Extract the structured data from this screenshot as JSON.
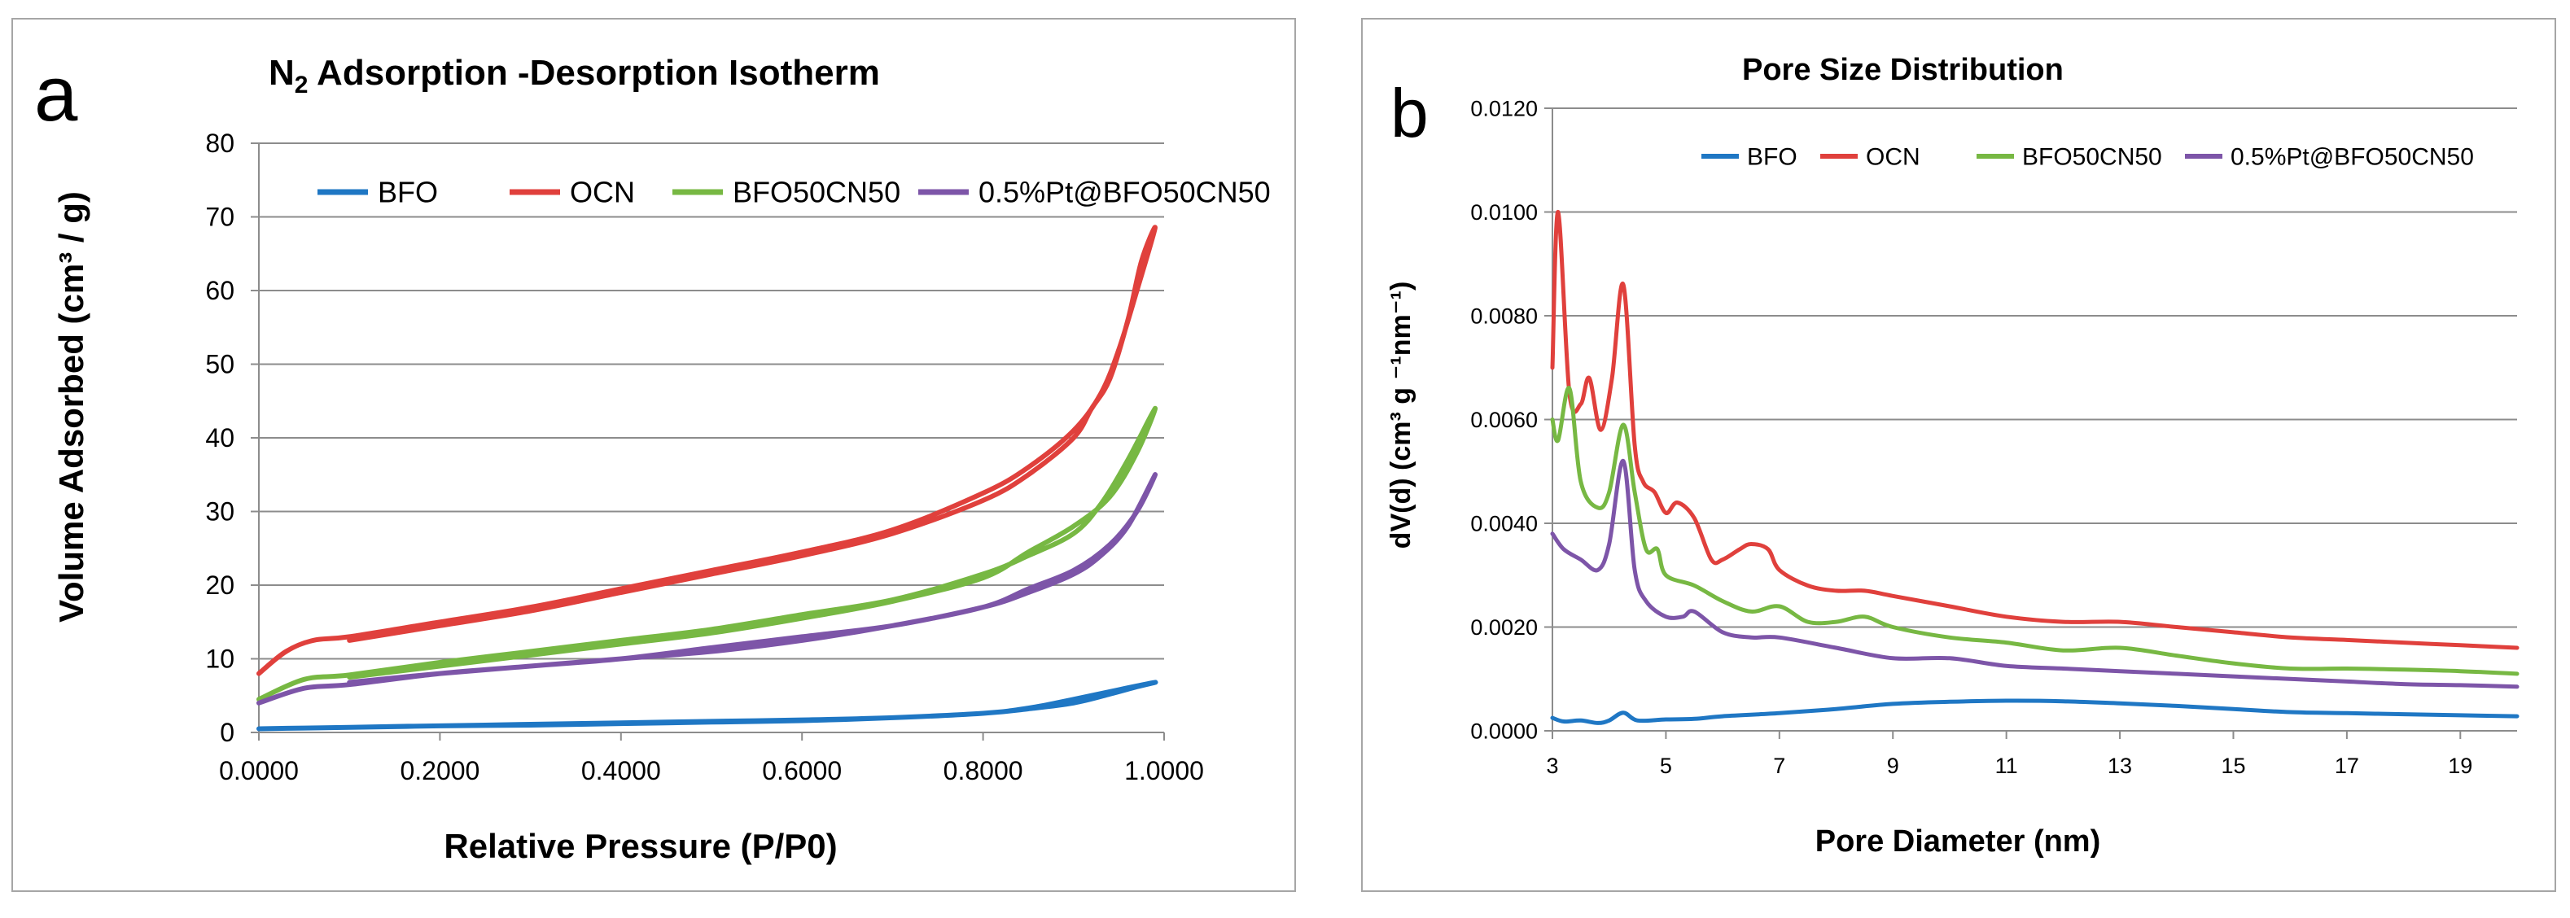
{
  "chart_data": [
    {
      "panel_letter": "a",
      "type": "line",
      "title_main": "N",
      "title_sub": "2",
      "title_rest": " Adsorption -Desorption Isotherm",
      "xlabel": "Relative Pressure (P/P0)",
      "ylabel": "Volume Adsorbed (cm³ / g)",
      "xlim": [
        0,
        1
      ],
      "ylim": [
        0,
        80
      ],
      "x_ticks": [
        0,
        0.2,
        0.4,
        0.6,
        0.8,
        1.0
      ],
      "x_tick_labels": [
        "0.0000",
        "0.2000",
        "0.4000",
        "0.6000",
        "0.8000",
        "1.0000"
      ],
      "y_ticks": [
        0,
        10,
        20,
        30,
        40,
        50,
        60,
        70,
        80
      ],
      "y_tick_labels": [
        "0",
        "10",
        "20",
        "30",
        "40",
        "50",
        "60",
        "70",
        "80"
      ],
      "grid": true,
      "legend_position": "top",
      "series": [
        {
          "name": "BFO",
          "color": "#1f77c4",
          "x": [
            0.0,
            0.05,
            0.1,
            0.2,
            0.3,
            0.4,
            0.5,
            0.6,
            0.7,
            0.8,
            0.85,
            0.9,
            0.95,
            0.99,
            0.97,
            0.94,
            0.9,
            0.85,
            0.8,
            0.7,
            0.6,
            0.5,
            0.4,
            0.3,
            0.2,
            0.1
          ],
          "y": [
            0.5,
            0.6,
            0.7,
            0.9,
            1.0,
            1.2,
            1.4,
            1.6,
            2.0,
            2.6,
            3.3,
            4.5,
            5.8,
            6.8,
            6.2,
            5.2,
            4.0,
            3.2,
            2.6,
            2.0,
            1.7,
            1.5,
            1.3,
            1.1,
            0.9,
            0.7
          ]
        },
        {
          "name": "OCN",
          "color": "#e0403c",
          "x": [
            0.0,
            0.03,
            0.06,
            0.1,
            0.2,
            0.3,
            0.4,
            0.5,
            0.6,
            0.7,
            0.8,
            0.85,
            0.9,
            0.93,
            0.95,
            0.97,
            0.99,
            0.975,
            0.96,
            0.94,
            0.92,
            0.9,
            0.85,
            0.8,
            0.7,
            0.6,
            0.5,
            0.4,
            0.3,
            0.2,
            0.1
          ],
          "y": [
            8.0,
            11.0,
            12.5,
            13.0,
            15.0,
            17.0,
            19.5,
            22.0,
            24.5,
            27.5,
            32.5,
            36.0,
            41.0,
            46.0,
            52.0,
            60.0,
            68.5,
            64.0,
            56.0,
            48.0,
            44.0,
            40.0,
            35.0,
            31.5,
            27.0,
            24.0,
            21.5,
            19.0,
            16.5,
            14.5,
            12.5
          ]
        },
        {
          "name": "BFO50CN50",
          "color": "#77b843",
          "x": [
            0.0,
            0.05,
            0.1,
            0.2,
            0.3,
            0.4,
            0.5,
            0.6,
            0.7,
            0.8,
            0.85,
            0.9,
            0.93,
            0.96,
            0.99,
            0.97,
            0.94,
            0.9,
            0.85,
            0.8,
            0.7,
            0.6,
            0.5,
            0.4,
            0.3,
            0.2,
            0.1
          ],
          "y": [
            4.5,
            7.2,
            7.8,
            9.5,
            11.0,
            12.5,
            14.0,
            16.0,
            18.0,
            21.5,
            24.0,
            27.0,
            31.0,
            37.0,
            44.0,
            38.0,
            32.0,
            28.0,
            24.5,
            21.0,
            17.8,
            15.5,
            13.5,
            12.0,
            10.5,
            9.0,
            7.5
          ]
        },
        {
          "name": "0.5%Pt@BFO50CN50",
          "color": "#7d55a8",
          "x": [
            0.0,
            0.05,
            0.1,
            0.2,
            0.3,
            0.4,
            0.5,
            0.6,
            0.7,
            0.8,
            0.85,
            0.9,
            0.93,
            0.96,
            0.99,
            0.97,
            0.94,
            0.9,
            0.85,
            0.8,
            0.7,
            0.6,
            0.5,
            0.4,
            0.3,
            0.2,
            0.1
          ],
          "y": [
            4.0,
            6.0,
            6.5,
            8.0,
            9.0,
            10.0,
            11.5,
            13.0,
            14.5,
            17.0,
            19.0,
            21.5,
            24.0,
            28.0,
            35.0,
            30.0,
            25.5,
            22.0,
            19.5,
            17.0,
            14.5,
            12.5,
            11.0,
            10.0,
            9.0,
            8.0,
            6.8
          ]
        }
      ]
    },
    {
      "panel_letter": "b",
      "type": "line",
      "title": "Pore Size Distribution",
      "xlabel": "Pore Diameter (nm)",
      "ylabel": "dV(d) (cm³ g ⁻¹nm⁻¹)",
      "xlim": [
        3,
        20
      ],
      "ylim": [
        0,
        0.012
      ],
      "x_ticks": [
        3,
        5,
        7,
        9,
        11,
        13,
        15,
        17,
        19
      ],
      "x_tick_labels": [
        "3",
        "5",
        "7",
        "9",
        "11",
        "13",
        "15",
        "17",
        "19"
      ],
      "y_ticks": [
        0,
        0.002,
        0.004,
        0.006,
        0.008,
        0.01,
        0.012
      ],
      "y_tick_labels": [
        "0.0000",
        "0.0020",
        "0.0040",
        "0.0060",
        "0.0080",
        "0.0100",
        "0.0120"
      ],
      "grid": true,
      "legend_position": "top",
      "series": [
        {
          "name": "BFO",
          "color": "#1f77c4",
          "x": [
            3.0,
            3.2,
            3.5,
            3.8,
            4.0,
            4.25,
            4.5,
            5.0,
            5.5,
            6.0,
            7.0,
            8.0,
            9.0,
            10.0,
            11.0,
            12.0,
            13.0,
            14.0,
            15.0,
            16.0,
            17.0,
            18.0,
            19.0,
            20.0
          ],
          "y": [
            0.00025,
            0.00018,
            0.0002,
            0.00015,
            0.0002,
            0.00035,
            0.0002,
            0.00022,
            0.00023,
            0.00028,
            0.00034,
            0.00042,
            0.00052,
            0.00056,
            0.00058,
            0.00057,
            0.00053,
            0.00048,
            0.00042,
            0.00036,
            0.00034,
            0.00032,
            0.0003,
            0.00028
          ]
        },
        {
          "name": "OCN",
          "color": "#e0403c",
          "x": [
            3.0,
            3.1,
            3.3,
            3.5,
            3.65,
            3.85,
            4.05,
            4.25,
            4.45,
            4.6,
            4.8,
            5.0,
            5.2,
            5.5,
            5.8,
            6.0,
            6.3,
            6.5,
            6.8,
            7.0,
            7.5,
            8.0,
            8.5,
            9.0,
            10.0,
            11.0,
            12.0,
            13.0,
            14.0,
            15.0,
            16.0,
            17.0,
            18.0,
            19.0,
            20.0
          ],
          "y": [
            0.007,
            0.01,
            0.0065,
            0.0063,
            0.0068,
            0.0058,
            0.0068,
            0.0086,
            0.0055,
            0.0048,
            0.0046,
            0.0042,
            0.0044,
            0.0041,
            0.0033,
            0.0033,
            0.0035,
            0.0036,
            0.0035,
            0.0031,
            0.0028,
            0.0027,
            0.0027,
            0.0026,
            0.0024,
            0.0022,
            0.0021,
            0.0021,
            0.002,
            0.0019,
            0.0018,
            0.00175,
            0.0017,
            0.00165,
            0.0016
          ]
        },
        {
          "name": "BFO50CN50",
          "color": "#77b843",
          "x": [
            3.0,
            3.1,
            3.3,
            3.5,
            3.8,
            4.0,
            4.25,
            4.45,
            4.65,
            4.85,
            5.0,
            5.5,
            6.0,
            6.5,
            7.0,
            7.5,
            8.0,
            8.5,
            9.0,
            10.0,
            11.0,
            12.0,
            13.0,
            14.0,
            15.0,
            16.0,
            17.0,
            18.0,
            19.0,
            20.0
          ],
          "y": [
            0.006,
            0.0056,
            0.0066,
            0.0048,
            0.0043,
            0.0046,
            0.0059,
            0.0046,
            0.0035,
            0.0035,
            0.003,
            0.0028,
            0.0025,
            0.0023,
            0.0024,
            0.0021,
            0.0021,
            0.0022,
            0.002,
            0.0018,
            0.0017,
            0.00155,
            0.0016,
            0.00145,
            0.0013,
            0.0012,
            0.0012,
            0.00118,
            0.00115,
            0.0011
          ]
        },
        {
          "name": "0.5%Pt@BFO50CN50",
          "color": "#7d55a8",
          "x": [
            3.0,
            3.2,
            3.5,
            3.8,
            4.0,
            4.25,
            4.45,
            4.65,
            5.0,
            5.3,
            5.5,
            6.0,
            6.5,
            7.0,
            8.0,
            9.0,
            10.0,
            11.0,
            12.0,
            13.0,
            14.0,
            15.0,
            16.0,
            17.0,
            18.0,
            19.0,
            20.0
          ],
          "y": [
            0.0038,
            0.0035,
            0.0033,
            0.0031,
            0.0036,
            0.0052,
            0.0031,
            0.0025,
            0.0022,
            0.0022,
            0.0023,
            0.0019,
            0.0018,
            0.0018,
            0.0016,
            0.0014,
            0.0014,
            0.00125,
            0.0012,
            0.00115,
            0.0011,
            0.00105,
            0.001,
            0.00095,
            0.0009,
            0.00088,
            0.00085
          ]
        }
      ]
    }
  ]
}
